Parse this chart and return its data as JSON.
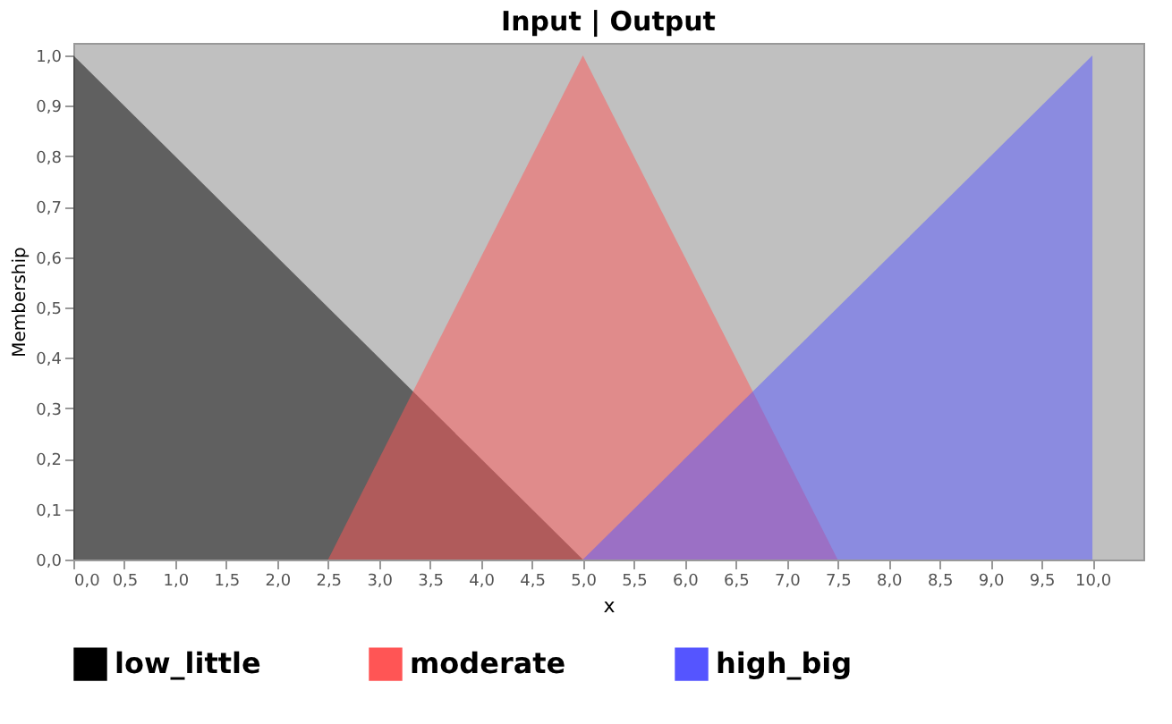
{
  "chart_data": {
    "type": "area",
    "title": "Input | Output",
    "xlabel": "x",
    "ylabel": "Membership",
    "xlim": [
      0,
      10.5
    ],
    "ylim": [
      0,
      1.025
    ],
    "xticks": [
      {
        "value": 0,
        "label": "0,0"
      },
      {
        "value": 0.5,
        "label": "0,5"
      },
      {
        "value": 1,
        "label": "1,0"
      },
      {
        "value": 1.5,
        "label": "1,5"
      },
      {
        "value": 2,
        "label": "2,0"
      },
      {
        "value": 2.5,
        "label": "2,5"
      },
      {
        "value": 3,
        "label": "3,0"
      },
      {
        "value": 3.5,
        "label": "3,5"
      },
      {
        "value": 4,
        "label": "4,0"
      },
      {
        "value": 4.5,
        "label": "4,5"
      },
      {
        "value": 5,
        "label": "5,0"
      },
      {
        "value": 5.5,
        "label": "5,5"
      },
      {
        "value": 6,
        "label": "6,0"
      },
      {
        "value": 6.5,
        "label": "6,5"
      },
      {
        "value": 7,
        "label": "7,0"
      },
      {
        "value": 7.5,
        "label": "7,5"
      },
      {
        "value": 8,
        "label": "8,0"
      },
      {
        "value": 8.5,
        "label": "8,5"
      },
      {
        "value": 9,
        "label": "9,0"
      },
      {
        "value": 9.5,
        "label": "9,5"
      },
      {
        "value": 10,
        "label": "10,0"
      }
    ],
    "yticks": [
      {
        "value": 0,
        "label": "0,0"
      },
      {
        "value": 0.1,
        "label": "0,1"
      },
      {
        "value": 0.2,
        "label": "0,2"
      },
      {
        "value": 0.3,
        "label": "0,3"
      },
      {
        "value": 0.4,
        "label": "0,4"
      },
      {
        "value": 0.5,
        "label": "0,5"
      },
      {
        "value": 0.6,
        "label": "0,6"
      },
      {
        "value": 0.7,
        "label": "0,7"
      },
      {
        "value": 0.8,
        "label": "0,8"
      },
      {
        "value": 0.9,
        "label": "0,9"
      },
      {
        "value": 1,
        "label": "1,0"
      }
    ],
    "grid": false,
    "legend": "bottom",
    "series": [
      {
        "name": "low_little",
        "color": "#000000",
        "x": [
          0,
          5
        ],
        "values": [
          1,
          0
        ]
      },
      {
        "name": "moderate",
        "color": "#ff5555",
        "x": [
          2.5,
          5,
          7.5
        ],
        "values": [
          0,
          1,
          0
        ]
      },
      {
        "name": "high_big",
        "color": "#5555ff",
        "x": [
          5,
          10
        ],
        "values": [
          0,
          1
        ]
      }
    ]
  }
}
